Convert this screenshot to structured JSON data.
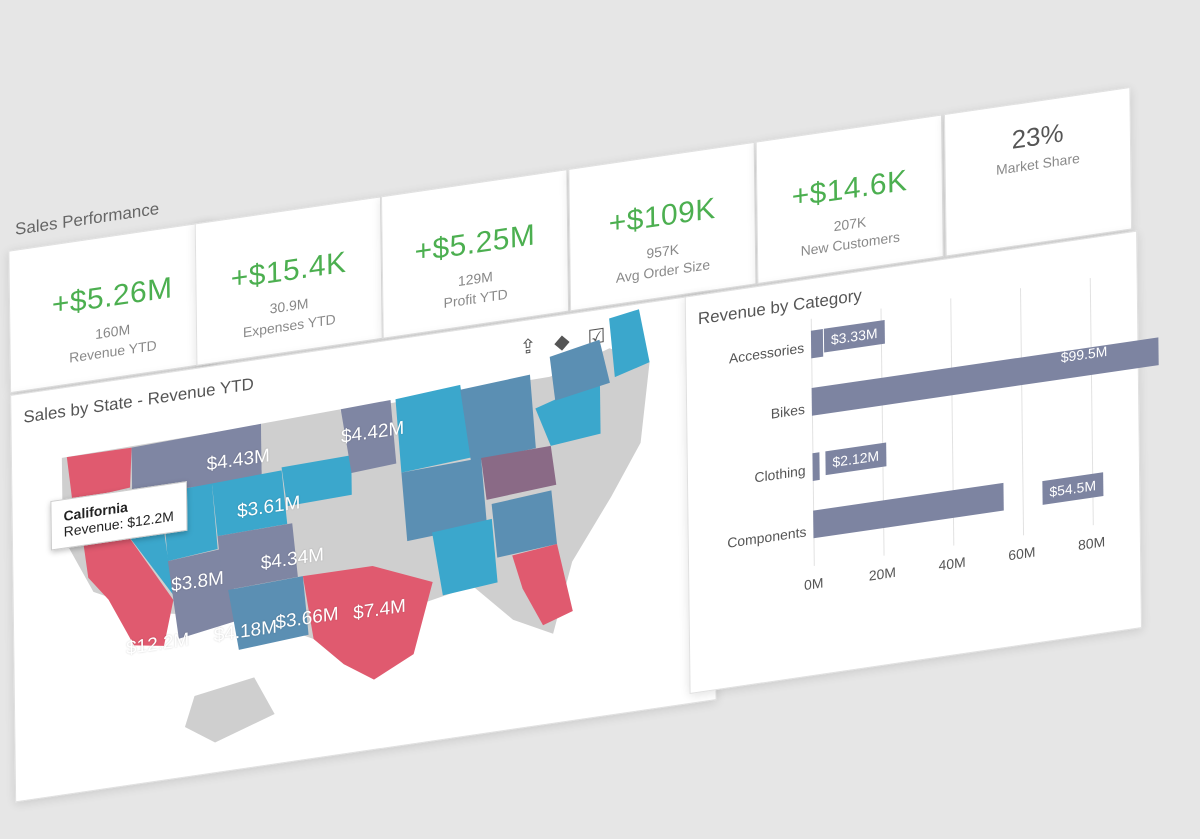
{
  "dashboard": {
    "title": "Sales Performance"
  },
  "kpis": [
    {
      "value": "+$5.26M",
      "sub": "160M",
      "label": "Revenue YTD"
    },
    {
      "value": "+$15.4K",
      "sub": "30.9M",
      "label": "Expenses YTD"
    },
    {
      "value": "+$5.25M",
      "sub": "129M",
      "label": "Profit YTD"
    },
    {
      "value": "+$109K",
      "sub": "957K",
      "label": "Avg Order Size"
    },
    {
      "value": "+$14.6K",
      "sub": "207K",
      "label": "New Customers"
    },
    {
      "value": "23%",
      "label": "Market Share"
    }
  ],
  "map": {
    "title": "Sales by State - Revenue YTD",
    "toolbar": {
      "export_icon": "export-icon",
      "layers_icon": "layers-icon",
      "select_icon": "checkbox-icon",
      "fullscreen_icon": "expand-icon"
    },
    "labels": [
      "$4.43M",
      "$4.42M",
      "$3.61M",
      "$3.8M",
      "$4.34M",
      "$12.2M",
      "$4.18M",
      "$3.66M",
      "$7.4M"
    ],
    "tooltip": {
      "title": "California",
      "line": "Revenue: $12.2M"
    },
    "colors": {
      "high": "#e05a6f",
      "mid": "#3ba7cc",
      "midDark": "#5b8fb3",
      "low": "#7f86a3",
      "none": "#cfcfcf",
      "dark": "#8a6a86"
    }
  },
  "category_chart": {
    "title": "Revenue by Category",
    "categories": [
      "Accessories",
      "Bikes",
      "Clothing",
      "Components"
    ],
    "value_labels": [
      "$3.33M",
      "$99.5M",
      "$2.12M",
      "$54.5M"
    ],
    "x_ticks": [
      "0M",
      "20M",
      "40M",
      "60M",
      "80M"
    ]
  },
  "chart_data": {
    "type": "bar",
    "title": "Revenue by Category",
    "categories": [
      "Accessories",
      "Bikes",
      "Clothing",
      "Components"
    ],
    "values": [
      3.33,
      99.5,
      2.12,
      54.5
    ],
    "xlim": [
      0,
      100
    ],
    "x_ticks": [
      "0M",
      "20M",
      "40M",
      "60M",
      "80M"
    ],
    "orientation": "horizontal",
    "color": "#7d84a1"
  }
}
